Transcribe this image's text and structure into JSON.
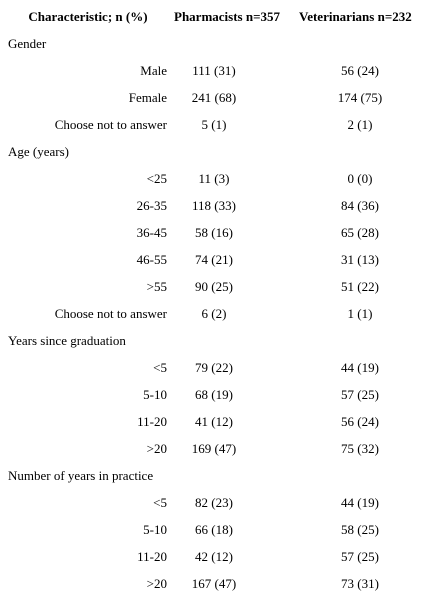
{
  "table": {
    "header": [
      "Characteristic; n (%)",
      "Pharmacists n=357",
      "Veterinarians n=232"
    ],
    "sections": [
      {
        "label": "Gender",
        "rows": [
          [
            "Male",
            "111 (31)",
            "56 (24)"
          ],
          [
            "Female",
            "241 (68)",
            "174 (75)"
          ],
          [
            "Choose not to answer",
            "5 (1)",
            "2 (1)"
          ]
        ]
      },
      {
        "label": "Age (years)",
        "rows": [
          [
            "<25",
            "11 (3)",
            "0 (0)"
          ],
          [
            "26-35",
            "118 (33)",
            "84 (36)"
          ],
          [
            "36-45",
            "58 (16)",
            "65 (28)"
          ],
          [
            "46-55",
            "74 (21)",
            "31 (13)"
          ],
          [
            ">55",
            "90 (25)",
            "51 (22)"
          ],
          [
            "Choose not to answer",
            "6 (2)",
            "1 (1)"
          ]
        ]
      },
      {
        "label": "Years since graduation",
        "rows": [
          [
            "<5",
            "79 (22)",
            "44 (19)"
          ],
          [
            "5-10",
            "68 (19)",
            "57 (25)"
          ],
          [
            "11-20",
            "41 (12)",
            "56 (24)"
          ],
          [
            ">20",
            "169 (47)",
            "75 (32)"
          ]
        ]
      },
      {
        "label": "Number of years in practice",
        "rows": [
          [
            "<5",
            "82 (23)",
            "44 (19)"
          ],
          [
            "5-10",
            "66 (18)",
            "58 (25)"
          ],
          [
            "11-20",
            "42 (12)",
            "57 (25)"
          ],
          [
            ">20",
            "167 (47)",
            "73 (31)"
          ]
        ]
      }
    ]
  }
}
